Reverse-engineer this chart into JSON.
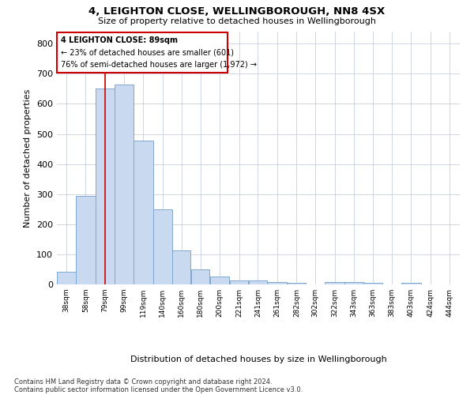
{
  "title_line1": "4, LEIGHTON CLOSE, WELLINGBOROUGH, NN8 4SX",
  "title_line2": "Size of property relative to detached houses in Wellingborough",
  "xlabel": "Distribution of detached houses by size in Wellingborough",
  "ylabel": "Number of detached properties",
  "footer_line1": "Contains HM Land Registry data © Crown copyright and database right 2024.",
  "footer_line2": "Contains public sector information licensed under the Open Government Licence v3.0.",
  "annotation_title": "4 LEIGHTON CLOSE: 89sqm",
  "annotation_line2": "← 23% of detached houses are smaller (601)",
  "annotation_line3": "76% of semi-detached houses are larger (1,972) →",
  "bar_labels": [
    "38sqm",
    "58sqm",
    "79sqm",
    "99sqm",
    "119sqm",
    "140sqm",
    "160sqm",
    "180sqm",
    "200sqm",
    "221sqm",
    "241sqm",
    "261sqm",
    "282sqm",
    "302sqm",
    "322sqm",
    "343sqm",
    "363sqm",
    "383sqm",
    "403sqm",
    "424sqm",
    "444sqm"
  ],
  "bar_values": [
    43,
    293,
    651,
    665,
    478,
    250,
    113,
    50,
    25,
    14,
    13,
    7,
    5,
    0,
    8,
    8,
    4,
    0,
    5,
    0,
    0
  ],
  "bar_edges": [
    38,
    58,
    79,
    99,
    119,
    140,
    160,
    180,
    200,
    221,
    241,
    261,
    282,
    302,
    322,
    343,
    363,
    383,
    403,
    424,
    444,
    465
  ],
  "bar_color": "#c9d9f0",
  "bar_edge_color": "#7fa8d0",
  "marker_line_color": "#cc0000",
  "marker_value": 89,
  "annotation_box_color": "#cc0000",
  "ylim": [
    0,
    840
  ],
  "yticks": [
    0,
    100,
    200,
    300,
    400,
    500,
    600,
    700,
    800
  ],
  "background_color": "#ffffff",
  "grid_color": "#c8d0dc"
}
